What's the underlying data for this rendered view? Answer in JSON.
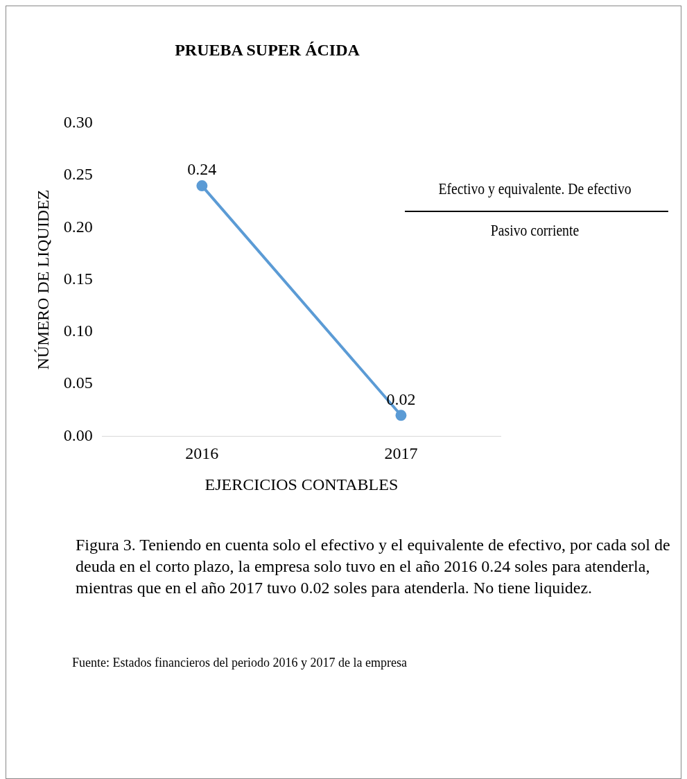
{
  "chart_data": {
    "type": "line",
    "title": "PRUEBA SUPER ÁCIDA",
    "xlabel": "EJERCICIOS CONTABLES",
    "ylabel": "NÚMERO DE LIQUIDEZ",
    "categories": [
      "2016",
      "2017"
    ],
    "series": [
      {
        "color": "#5b9bd5",
        "values": [
          0.24,
          0.02
        ]
      }
    ],
    "ylim": [
      0,
      0.3
    ],
    "yticks": [
      {
        "value": 0,
        "label": "0.00"
      },
      {
        "value": 0.05,
        "label": "0.05"
      },
      {
        "value": 0.1,
        "label": "0.10"
      },
      {
        "value": 0.15,
        "label": "0.15"
      },
      {
        "value": 0.2,
        "label": "0.20"
      },
      {
        "value": 0.25,
        "label": "0.25"
      },
      {
        "value": 0.3,
        "label": "0.30"
      }
    ],
    "grid": false,
    "legend": false,
    "marker": "circle",
    "line_style": "solid",
    "data_labels": true,
    "annotations": [
      "Efectivo y equivalente. De efectivo",
      "Pasivo corriente",
      "Figura 3. Teniendo en cuenta solo el efectivo y el equivalente de efectivo, por cada sol de deuda en el corto plazo, la empresa solo tuvo en el año 2016 0.24 soles para atenderla, mientras que en el año 2017 tuvo 0.02 soles para atenderla. No tiene liquidez.",
      "Fuente: Estados financieros del periodo 2016 y 2017 de la empresa"
    ]
  }
}
